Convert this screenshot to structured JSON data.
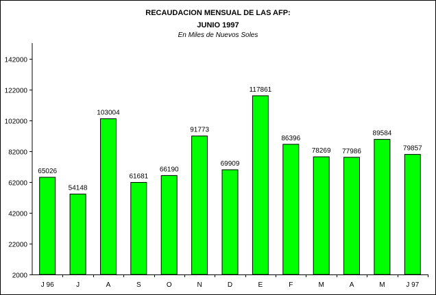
{
  "chart_data": {
    "type": "bar",
    "title": "RECAUDACION MENSUAL DE LAS AFP:",
    "subtitle": "JUNIO 1997",
    "note": "En Miles de Nuevos Soles",
    "categories": [
      "J  96",
      "J",
      "A",
      "S",
      "O",
      "N",
      "D",
      "E",
      "F",
      "M",
      "A",
      "M",
      "J  97"
    ],
    "values": [
      65026,
      54148,
      103004,
      61681,
      66190,
      91773,
      69909,
      117861,
      86396,
      78269,
      77986,
      89584,
      79857
    ],
    "value_labels": [
      "65026",
      "54148",
      "103004",
      "61681",
      "66190",
      "91773",
      "69909",
      "117861",
      "86396",
      "78269",
      "77986",
      "89584",
      "79857"
    ],
    "yticks": [
      2000,
      22000,
      42000,
      62000,
      82000,
      102000,
      122000,
      142000
    ],
    "ytick_labels": [
      "2000",
      "22000",
      "42000",
      "62000",
      "82000",
      "102000",
      "122000",
      "142000"
    ],
    "ylim": [
      2000,
      152000
    ],
    "xlabel": "",
    "ylabel": "",
    "grid": false,
    "legend": "none",
    "bar_color": "#00ff00",
    "bar_edge_color": "#000000"
  }
}
